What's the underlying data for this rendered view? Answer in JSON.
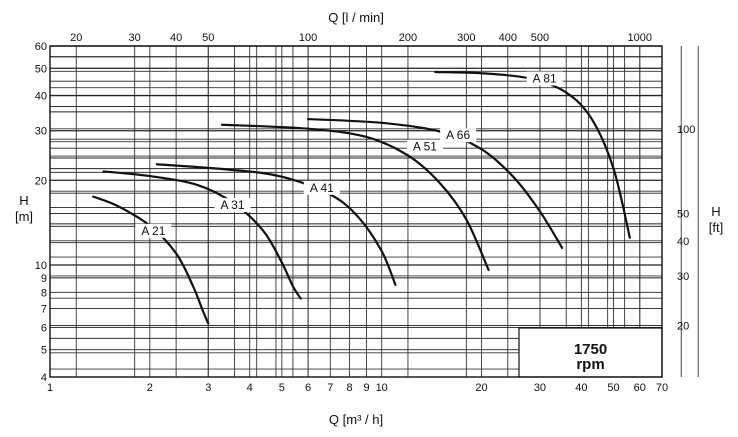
{
  "chart_data": {
    "type": "line",
    "scales": {
      "x": "log",
      "y": "log"
    },
    "x_axis": {
      "label": "Q [m³ / h]",
      "range": [
        1,
        70
      ],
      "ticks": [
        1,
        2,
        3,
        4,
        5,
        6,
        7,
        8,
        9,
        10,
        20,
        30,
        40,
        50,
        60,
        70
      ]
    },
    "top_axis": {
      "label": "Q [l / min]",
      "ticks": [
        20,
        30,
        40,
        50,
        100,
        200,
        300,
        400,
        500,
        1000
      ]
    },
    "y_axis": {
      "label_line1": "H",
      "label_line2": "[m]",
      "range": [
        4,
        60
      ],
      "ticks": [
        4,
        5,
        6,
        7,
        8,
        9,
        10,
        20,
        30,
        40,
        50,
        60
      ]
    },
    "right_axis": {
      "label_line1": "H",
      "label_line2": "[ft]",
      "ticks": [
        20,
        30,
        40,
        50,
        100
      ]
    },
    "speed_box": {
      "value": "1750",
      "unit": "rpm"
    },
    "series": [
      {
        "name": "A 21",
        "points": [
          [
            1.35,
            17.5
          ],
          [
            1.6,
            16.2
          ],
          [
            2.0,
            13.8
          ],
          [
            2.4,
            11.0
          ],
          [
            2.7,
            8.4
          ],
          [
            2.9,
            6.8
          ],
          [
            3.0,
            6.2
          ]
        ],
        "label_at": [
          2.05,
          12.8
        ]
      },
      {
        "name": "A 31",
        "points": [
          [
            1.45,
            21.5
          ],
          [
            2.0,
            20.7
          ],
          [
            2.8,
            19.2
          ],
          [
            3.6,
            16.5
          ],
          [
            4.4,
            13.2
          ],
          [
            5.0,
            10.2
          ],
          [
            5.4,
            8.4
          ],
          [
            5.7,
            7.6
          ]
        ],
        "label_at": [
          3.55,
          15.8
        ]
      },
      {
        "name": "A 41",
        "points": [
          [
            2.1,
            22.8
          ],
          [
            3.5,
            21.8
          ],
          [
            5.0,
            20.6
          ],
          [
            7.0,
            17.8
          ],
          [
            8.5,
            14.8
          ],
          [
            10.0,
            11.2
          ],
          [
            11.0,
            8.5
          ]
        ],
        "label_at": [
          6.6,
          18.2
        ]
      },
      {
        "name": "A 51",
        "points": [
          [
            3.3,
            31.5
          ],
          [
            6.0,
            30.5
          ],
          [
            9.0,
            28.5
          ],
          [
            12.0,
            24.5
          ],
          [
            15.0,
            19.5
          ],
          [
            18.0,
            14.5
          ],
          [
            21.0,
            9.6
          ]
        ],
        "label_at": [
          13.5,
          25.5
        ]
      },
      {
        "name": "A 66",
        "points": [
          [
            6.0,
            33.0
          ],
          [
            10.0,
            32.0
          ],
          [
            15.0,
            29.8
          ],
          [
            20.0,
            25.8
          ],
          [
            25.0,
            20.5
          ],
          [
            30.0,
            15.5
          ],
          [
            35.0,
            11.5
          ]
        ],
        "label_at": [
          17.0,
          28.0
        ]
      },
      {
        "name": "A 81",
        "points": [
          [
            14.5,
            48.5
          ],
          [
            20.0,
            48.0
          ],
          [
            28.0,
            46.0
          ],
          [
            36.0,
            41.0
          ],
          [
            43.0,
            33.0
          ],
          [
            50.0,
            22.0
          ],
          [
            56.0,
            12.5
          ]
        ],
        "label_at": [
          31.0,
          44.5
        ]
      }
    ]
  }
}
